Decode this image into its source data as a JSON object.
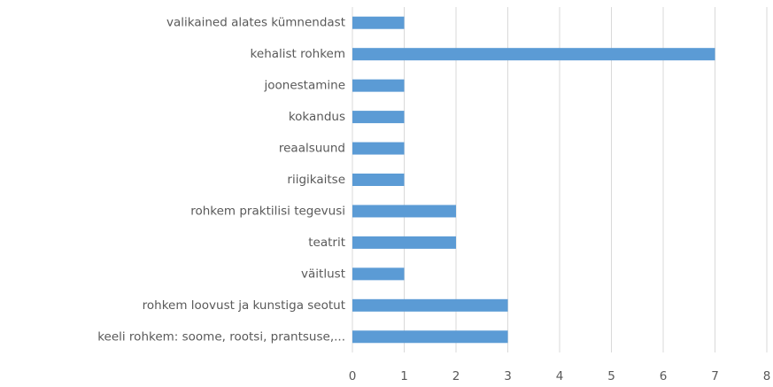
{
  "chart_data": {
    "type": "hbar",
    "categories": [
      "valikained alates kümnendast",
      "kehalist rohkem",
      "joonestamine",
      "kokandus",
      "reaalsuund",
      "riigikaitse",
      "rohkem praktilisi tegevusi",
      "teatrit",
      "väitlust",
      "rohkem loovust ja kunstiga seotut",
      "keeli rohkem: soome, rootsi, prantsuse,..."
    ],
    "values": [
      1,
      7,
      1,
      1,
      1,
      1,
      2,
      2,
      1,
      3,
      3
    ],
    "color": "#5b9bd5",
    "xlim": [
      0,
      8
    ],
    "xticks": [
      0,
      1,
      2,
      3,
      4,
      5,
      6,
      7,
      8
    ],
    "grid": true
  }
}
